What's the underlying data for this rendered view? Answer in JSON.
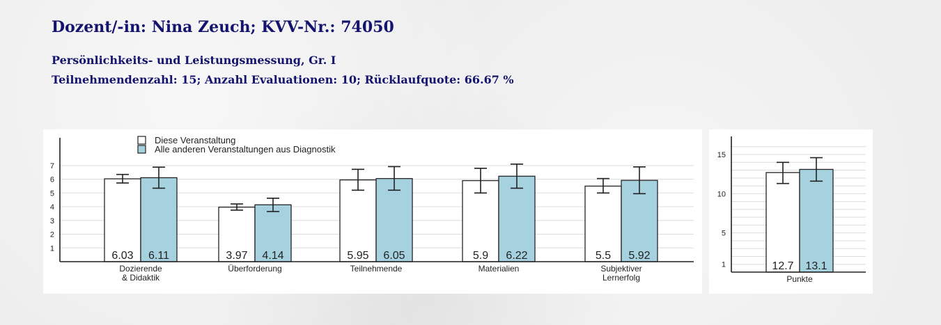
{
  "header": {
    "title": "Dozent/-in: Nina Zeuch; KVV-Nr.: 74050",
    "course": "Persönlichkeits- und Leistungsmessung, Gr. I",
    "stats": "Teilnehmendenzahl: 15; Anzahl Evaluationen: 10; Rücklaufquote: 66.67 %"
  },
  "colors": {
    "header_text": "#14146e",
    "this_course": "#ffffff",
    "other_courses": "#a6d2e0"
  },
  "chart_data": [
    {
      "type": "bar",
      "categories": [
        "Dozierende\n& Didaktik",
        "Überforderung",
        "Teilnehmende",
        "Materialien",
        "Subjektiver\nLernerfolg"
      ],
      "ylim": [
        0,
        7.7
      ],
      "yticks": [
        1,
        2,
        3,
        4,
        5,
        6,
        7
      ],
      "grid": true,
      "legend_position": "top-left",
      "series": [
        {
          "name": "Diese Veranstaltung",
          "values": [
            6.03,
            3.97,
            5.95,
            5.9,
            5.5
          ],
          "labels": [
            "6.03",
            "3.97",
            "5.95",
            "5.9",
            "5.5"
          ],
          "err_low": [
            5.73,
            3.75,
            5.2,
            5.0,
            5.0
          ],
          "err_high": [
            6.35,
            4.2,
            6.72,
            6.8,
            6.05
          ]
        },
        {
          "name": "Alle anderen Veranstaltungen aus Diagnostik",
          "values": [
            6.11,
            4.14,
            6.05,
            6.22,
            5.92
          ],
          "labels": [
            "6.11",
            "4.14",
            "6.05",
            "6.22",
            "5.92"
          ],
          "err_low": [
            5.35,
            3.65,
            5.2,
            5.35,
            4.95
          ],
          "err_high": [
            6.88,
            4.62,
            6.92,
            7.1,
            6.9
          ]
        }
      ]
    },
    {
      "type": "bar",
      "categories": [
        "Punkte"
      ],
      "ylim": [
        0,
        16.6
      ],
      "yticks": [
        1,
        5,
        10,
        15
      ],
      "grid": true,
      "series": [
        {
          "name": "Diese Veranstaltung",
          "values": [
            12.7
          ],
          "labels": [
            "12.7"
          ],
          "err_low": [
            11.3
          ],
          "err_high": [
            14.0
          ]
        },
        {
          "name": "Alle anderen Veranstaltungen aus Diagnostik",
          "values": [
            13.1
          ],
          "labels": [
            "13.1"
          ],
          "err_low": [
            11.6
          ],
          "err_high": [
            14.6
          ]
        }
      ]
    }
  ]
}
